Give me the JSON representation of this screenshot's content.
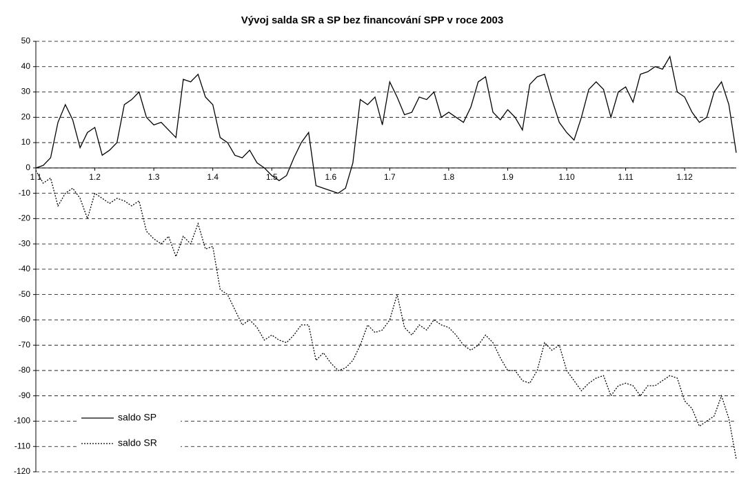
{
  "chart_data": {
    "type": "line",
    "title": "Vývoj salda SR a SP bez financování SPP v roce 2003",
    "categories": [
      "1.1",
      null,
      null,
      null,
      null,
      null,
      null,
      null,
      "1.2",
      null,
      null,
      null,
      null,
      null,
      null,
      null,
      "1.3",
      null,
      null,
      null,
      null,
      null,
      null,
      null,
      "1.4",
      null,
      null,
      null,
      null,
      null,
      null,
      null,
      "1.5",
      null,
      null,
      null,
      null,
      null,
      null,
      null,
      "1.6",
      null,
      null,
      null,
      null,
      null,
      null,
      null,
      "1.7",
      null,
      null,
      null,
      null,
      null,
      null,
      null,
      "1.8",
      null,
      null,
      null,
      null,
      null,
      null,
      null,
      "1.9",
      null,
      null,
      null,
      null,
      null,
      null,
      null,
      "1.10",
      null,
      null,
      null,
      null,
      null,
      null,
      null,
      "1.11",
      null,
      null,
      null,
      null,
      null,
      null,
      null,
      "1.12",
      null,
      null,
      null,
      null,
      null,
      null,
      null
    ],
    "series": [
      {
        "name": "saldo SP",
        "color": "#000000",
        "dash": "none",
        "values": [
          0,
          1,
          4,
          18,
          25,
          19,
          8,
          14,
          16,
          5,
          7,
          10,
          25,
          27,
          30,
          20,
          17,
          18,
          15,
          12,
          35,
          34,
          37,
          28,
          25,
          12,
          10,
          5,
          4,
          7,
          2,
          0,
          -3,
          -5,
          -3,
          4,
          10,
          14,
          -7,
          -8,
          -9,
          -10,
          -8,
          2,
          27,
          25,
          28,
          17,
          34,
          28,
          21,
          22,
          28,
          27,
          30,
          20,
          22,
          20,
          18,
          24,
          34,
          36,
          22,
          19,
          23,
          20,
          15,
          33,
          36,
          37,
          27,
          18,
          14,
          11,
          20,
          31,
          34,
          31,
          20,
          30,
          32,
          26,
          37,
          38,
          40,
          39,
          44,
          30,
          28,
          22,
          18,
          20,
          30,
          34,
          25,
          6
        ]
      },
      {
        "name": "saldo SR",
        "color": "#000000",
        "dash": "2,2",
        "values": [
          -1,
          -6,
          -4,
          -15,
          -10,
          -8,
          -12,
          -20,
          -10,
          -12,
          -14,
          -12,
          -13,
          -15,
          -13,
          -25,
          -28,
          -30,
          -27,
          -35,
          -27,
          -30,
          -22,
          -32,
          -31,
          -48,
          -50,
          -56,
          -62,
          -60,
          -63,
          -68,
          -66,
          -68,
          -69,
          -66,
          -62,
          -62,
          -76,
          -73,
          -77,
          -80,
          -79,
          -76,
          -70,
          -62,
          -65,
          -64,
          -60,
          -50,
          -63,
          -66,
          -62,
          -64,
          -60,
          -62,
          -63,
          -66,
          -70,
          -72,
          -70,
          -66,
          -69,
          -75,
          -80,
          -80,
          -84,
          -85,
          -80,
          -69,
          -72,
          -70,
          -80,
          -84,
          -88,
          -85,
          -83,
          -82,
          -90,
          -86,
          -85,
          -86,
          -90,
          -86,
          -86,
          -84,
          -82,
          -83,
          -92,
          -95,
          -102,
          -100,
          -98,
          -90,
          -99,
          -115
        ]
      }
    ],
    "ylim": [
      -120,
      50
    ],
    "yticks": [
      -120,
      -110,
      -100,
      -90,
      -80,
      -70,
      -60,
      -50,
      -40,
      -30,
      -20,
      -10,
      0,
      10,
      20,
      30,
      40,
      50
    ],
    "grid": true,
    "legend": "lower left"
  }
}
